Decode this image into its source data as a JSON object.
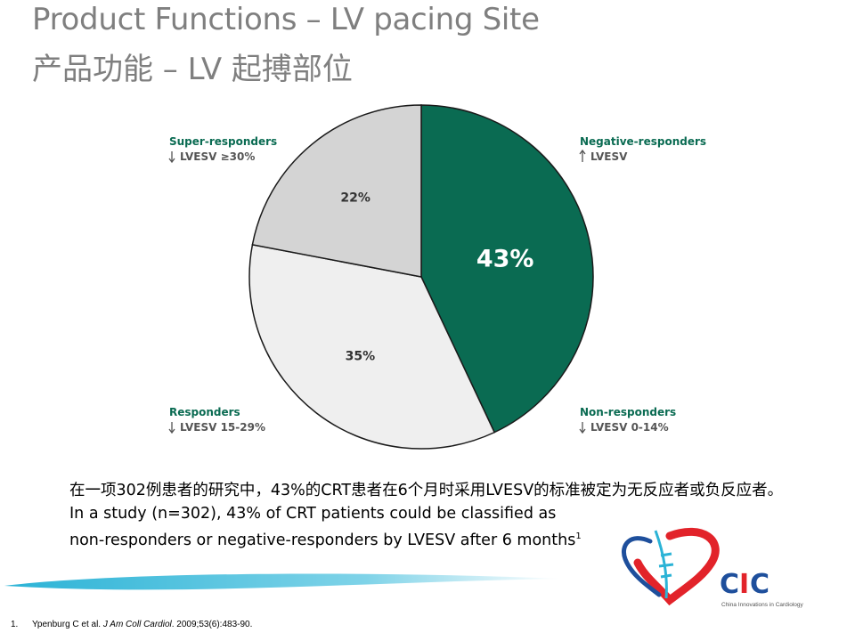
{
  "slide": {
    "title_en": "Product Functions – LV pacing Site",
    "title_zh": "产品功能 – LV 起搏部位"
  },
  "chart_data": {
    "type": "pie",
    "slices": [
      {
        "label": "Negative-responders",
        "sublabel": "LVESV",
        "arrow": "up",
        "value": 43,
        "value_label": "43%",
        "color": "#0a6b52"
      },
      {
        "label": "Responders",
        "sublabel": "LVESV 15-29%",
        "arrow": "down",
        "value": 35,
        "value_label": "35%",
        "color": "#efefef"
      },
      {
        "label": "Super-responders",
        "sublabel": "LVESV ≥30%",
        "arrow": "down",
        "value": 22,
        "value_label": "22%",
        "color": "#d4d4d4"
      }
    ],
    "extra_legend": [
      {
        "label": "Non-responders",
        "sublabel": "LVESV 0-14%",
        "arrow": "down"
      }
    ],
    "title": "",
    "legend_position": "corners"
  },
  "body": {
    "zh": "在一项302例患者的研究中，43%的CRT患者在6个月时采用LVESV的标准被定为无反应者或负反应者。",
    "en_line1": "In a study (n=302), 43% of CRT patients could be classified as",
    "en_line2": "non-responders or negative-responders by LVESV after 6 months",
    "en_sup": "1"
  },
  "footnote": {
    "number": "1.",
    "authors": "Ypenburg C et al. ",
    "journal": "J Am Coll Cardiol",
    "details": ". 2009;53(6):483-90."
  },
  "logo": {
    "name": "CIC",
    "tagline": "China Innovations in Cardiology",
    "colors": {
      "red": "#e2232a",
      "blue": "#1e4f9c",
      "cyan": "#2bb3d6"
    }
  }
}
